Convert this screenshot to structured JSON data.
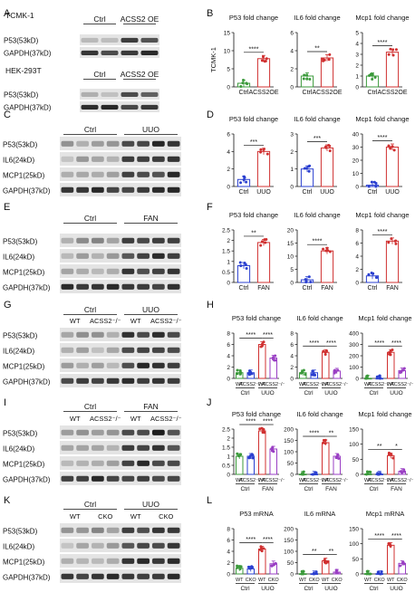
{
  "colors": {
    "ctrl": "#3b9a3b",
    "oe": "#d03030",
    "blue": "#2a3fd0",
    "purple": "#9a3fc4",
    "band": "#1c1c1c",
    "membrane": "#e4e4e4"
  },
  "panel_letters": [
    "A",
    "B",
    "C",
    "D",
    "E",
    "F",
    "G",
    "H",
    "I",
    "J",
    "K",
    "L"
  ],
  "blots": [
    {
      "panel": "A",
      "cell_line": "TCMK-1",
      "groups": [
        "Ctrl",
        "ACSS2 OE"
      ],
      "rows": [
        "P53(53kD)",
        "GAPDH(37kD)"
      ]
    },
    {
      "panel": "A",
      "cell_line": "HEK-293T",
      "groups": [
        "Ctrl",
        "ACSS2 OE"
      ],
      "rows": [
        "P53(53kD)",
        "GAPDH(37kD)"
      ]
    },
    {
      "panel": "C",
      "groups": [
        "Ctrl",
        "UUO"
      ],
      "rows": [
        "P53(53kD)",
        "IL6(24kD)",
        "MCP1(25kD)",
        "GAPDH(37kD)"
      ]
    },
    {
      "panel": "E",
      "groups": [
        "Ctrl",
        "FAN"
      ],
      "rows": [
        "P53(53kD)",
        "IL6(24kD)",
        "MCP1(25kD)",
        "GAPDH(37kD)"
      ]
    },
    {
      "panel": "G",
      "groups": [
        "Ctrl",
        "UUO"
      ],
      "subgroups": [
        "WT",
        "ACSS2⁻/⁻",
        "WT",
        "ACSS2⁻/⁻"
      ],
      "rows": [
        "P53(53kD)",
        "IL6(24kD)",
        "MCP1(25kD)",
        "GAPDH(37kD)"
      ]
    },
    {
      "panel": "I",
      "groups": [
        "Ctrl",
        "FAN"
      ],
      "subgroups": [
        "WT",
        "ACSS2⁻/⁻",
        "WT",
        "ACSS2⁻/⁻"
      ],
      "rows": [
        "P53(53kD)",
        "IL6(24kD)",
        "MCP1(25kD)",
        "GAPDH(37kD)"
      ]
    },
    {
      "panel": "K",
      "groups": [
        "Ctrl",
        "UUO"
      ],
      "subgroups": [
        "WT",
        "CKO",
        "WT",
        "CKO"
      ],
      "rows": [
        "P53(53kD)",
        "IL6(24kD)",
        "MCP1(25kD)",
        "GAPDH(37kD)"
      ]
    }
  ],
  "chart_data": [
    {
      "panel": "B",
      "type": "bar",
      "title": "P53 fold change",
      "ylabel": "TCMK-1",
      "categories": [
        "Ctrl",
        "ACSS2OE"
      ],
      "values": [
        1.0,
        7.8
      ],
      "ylim": [
        0,
        15
      ],
      "ticks": [
        0,
        5,
        10,
        15
      ],
      "sig": [
        "****"
      ]
    },
    {
      "panel": "B",
      "type": "bar",
      "title": "IL6 fold change",
      "ylabel": "",
      "categories": [
        "Ctrl",
        "ACSS2OE"
      ],
      "values": [
        1.2,
        3.2
      ],
      "ylim": [
        0,
        6
      ],
      "ticks": [
        0,
        2,
        4,
        6
      ],
      "sig": [
        "**"
      ]
    },
    {
      "panel": "B",
      "type": "bar",
      "title": "Mcp1 fold change",
      "ylabel": "",
      "categories": [
        "Ctrl",
        "ACSS2OE"
      ],
      "values": [
        1.0,
        3.2
      ],
      "ylim": [
        0,
        5
      ],
      "ticks": [
        0,
        1,
        2,
        3,
        4,
        5
      ],
      "sig": [
        "****"
      ]
    },
    {
      "panel": "D",
      "type": "bar",
      "title": "P53 fold change",
      "categories": [
        "Ctrl",
        "UUO"
      ],
      "values": [
        0.8,
        4.0
      ],
      "ylim": [
        0,
        6
      ],
      "ticks": [
        0,
        2,
        4,
        6
      ],
      "sig": [
        "***"
      ]
    },
    {
      "panel": "D",
      "type": "bar",
      "title": "IL6 fold change",
      "categories": [
        "Ctrl",
        "UUO"
      ],
      "values": [
        1.0,
        2.2
      ],
      "ylim": [
        0,
        3
      ],
      "ticks": [
        0,
        1,
        2,
        3
      ],
      "sig": [
        "***"
      ]
    },
    {
      "panel": "D",
      "type": "bar",
      "title": "Mcp1 fold change",
      "categories": [
        "Ctrl",
        "UUO"
      ],
      "values": [
        1.0,
        30.0
      ],
      "ylim": [
        0,
        40
      ],
      "ticks": [
        0,
        10,
        20,
        30,
        40
      ],
      "sig": [
        "****"
      ]
    },
    {
      "panel": "F",
      "type": "bar",
      "title": "P53 fold change",
      "categories": [
        "Ctrl",
        "FAN"
      ],
      "values": [
        0.8,
        1.9
      ],
      "ylim": [
        0,
        2.5
      ],
      "ticks": [
        0,
        0.5,
        1,
        1.5,
        2,
        2.5
      ],
      "sig": [
        "**"
      ]
    },
    {
      "panel": "F",
      "type": "bar",
      "title": "IL6 fold change",
      "categories": [
        "Ctrl",
        "FAN"
      ],
      "values": [
        1.0,
        12.0
      ],
      "ylim": [
        0,
        20
      ],
      "ticks": [
        0,
        5,
        10,
        15,
        20
      ],
      "sig": [
        "****"
      ]
    },
    {
      "panel": "F",
      "type": "bar",
      "title": "Mcp1 fold change",
      "categories": [
        "Ctrl",
        "FAN"
      ],
      "values": [
        1.0,
        6.3
      ],
      "ylim": [
        0,
        8
      ],
      "ticks": [
        0,
        2,
        4,
        6,
        8
      ],
      "sig": [
        "****"
      ]
    },
    {
      "panel": "H",
      "type": "bar",
      "title": "P53 fold change",
      "categories": [
        "WT",
        "ACSS2⁻/⁻",
        "WT",
        "ACSS2⁻/⁻"
      ],
      "groups": [
        "Ctrl",
        "UUO"
      ],
      "values": [
        1.0,
        1.0,
        6.0,
        3.6
      ],
      "ylim": [
        0,
        8
      ],
      "ticks": [
        0,
        2,
        4,
        6,
        8
      ],
      "sig": [
        "****",
        "****"
      ]
    },
    {
      "panel": "H",
      "type": "bar",
      "title": "IL6 fold change",
      "categories": [
        "WT",
        "ACSS2⁻/⁻",
        "WT",
        "ACSS2⁻/⁻"
      ],
      "groups": [
        "Ctrl",
        "UUO"
      ],
      "values": [
        1.0,
        1.0,
        4.6,
        1.3
      ],
      "ylim": [
        0,
        8
      ],
      "ticks": [
        0,
        2,
        4,
        6,
        8
      ],
      "sig": [
        "****",
        "****"
      ]
    },
    {
      "panel": "H",
      "type": "bar",
      "title": "Mcp1 fold change",
      "categories": [
        "WT",
        "ACSS2⁻/⁻",
        "WT",
        "ACSS2⁻/⁻"
      ],
      "groups": [
        "Ctrl",
        "UUO"
      ],
      "values": [
        1.0,
        1.0,
        230.0,
        68.0
      ],
      "ylim": [
        0,
        400
      ],
      "ticks": [
        0,
        100,
        200,
        300,
        400
      ],
      "sig": [
        "****",
        "****"
      ]
    },
    {
      "panel": "J",
      "type": "bar",
      "title": "P53 fold change",
      "categories": [
        "WT",
        "ACSS2⁻/⁻",
        "WT",
        "ACSS2⁻/⁻"
      ],
      "groups": [
        "Ctrl",
        "FAN"
      ],
      "values": [
        1.0,
        1.0,
        2.4,
        1.4
      ],
      "ylim": [
        0,
        2.5
      ],
      "ticks": [
        0,
        0.5,
        1,
        1.5,
        2,
        2.5
      ],
      "sig": [
        "****",
        "****"
      ]
    },
    {
      "panel": "J",
      "type": "bar",
      "title": "IL6 fold change",
      "categories": [
        "WT",
        "ACSS2⁻/⁻",
        "WT",
        "ACSS2⁻/⁻"
      ],
      "groups": [
        "Ctrl",
        "FAN"
      ],
      "values": [
        1.0,
        1.0,
        140.0,
        80.0
      ],
      "ylim": [
        0,
        200
      ],
      "ticks": [
        0,
        50,
        100,
        150,
        200
      ],
      "sig": [
        "****",
        "**"
      ]
    },
    {
      "panel": "J",
      "type": "bar",
      "title": "Mcp1 fold change",
      "categories": [
        "WT",
        "ACSS2⁻/⁻",
        "WT",
        "ACSS2⁻/⁻"
      ],
      "groups": [
        "Ctrl",
        "FAN"
      ],
      "values": [
        1.0,
        1.0,
        62.0,
        10.0
      ],
      "ylim": [
        0,
        150
      ],
      "ticks": [
        0,
        50,
        100,
        150
      ],
      "sig": [
        "**",
        "*"
      ]
    },
    {
      "panel": "L",
      "type": "bar",
      "title": "P53 mRNA",
      "categories": [
        "WT",
        "CKO",
        "WT",
        "CKO"
      ],
      "groups": [
        "Ctrl",
        "UUO"
      ],
      "values": [
        1.0,
        0.9,
        4.4,
        1.8
      ],
      "ylim": [
        0,
        8
      ],
      "ticks": [
        0,
        2,
        4,
        6,
        8
      ],
      "sig": [
        "****",
        "****"
      ]
    },
    {
      "panel": "L",
      "type": "bar",
      "title": "IL6 mRNA",
      "categories": [
        "WT",
        "CKO",
        "WT",
        "CKO"
      ],
      "groups": [
        "Ctrl",
        "UUO"
      ],
      "values": [
        1.0,
        1.0,
        58.0,
        8.0
      ],
      "ylim": [
        0,
        200
      ],
      "ticks": [
        0,
        50,
        100,
        150,
        200
      ],
      "sig": [
        "**",
        "**"
      ]
    },
    {
      "panel": "L",
      "type": "bar",
      "title": "Mcp1 mRNA",
      "categories": [
        "WT",
        "CKO",
        "WT",
        "CKO"
      ],
      "groups": [
        "Ctrl",
        "UUO"
      ],
      "values": [
        1.0,
        1.0,
        95.0,
        35.0
      ],
      "ylim": [
        0,
        150
      ],
      "ticks": [
        0,
        50,
        100,
        150
      ],
      "sig": [
        "****",
        "****"
      ]
    }
  ]
}
